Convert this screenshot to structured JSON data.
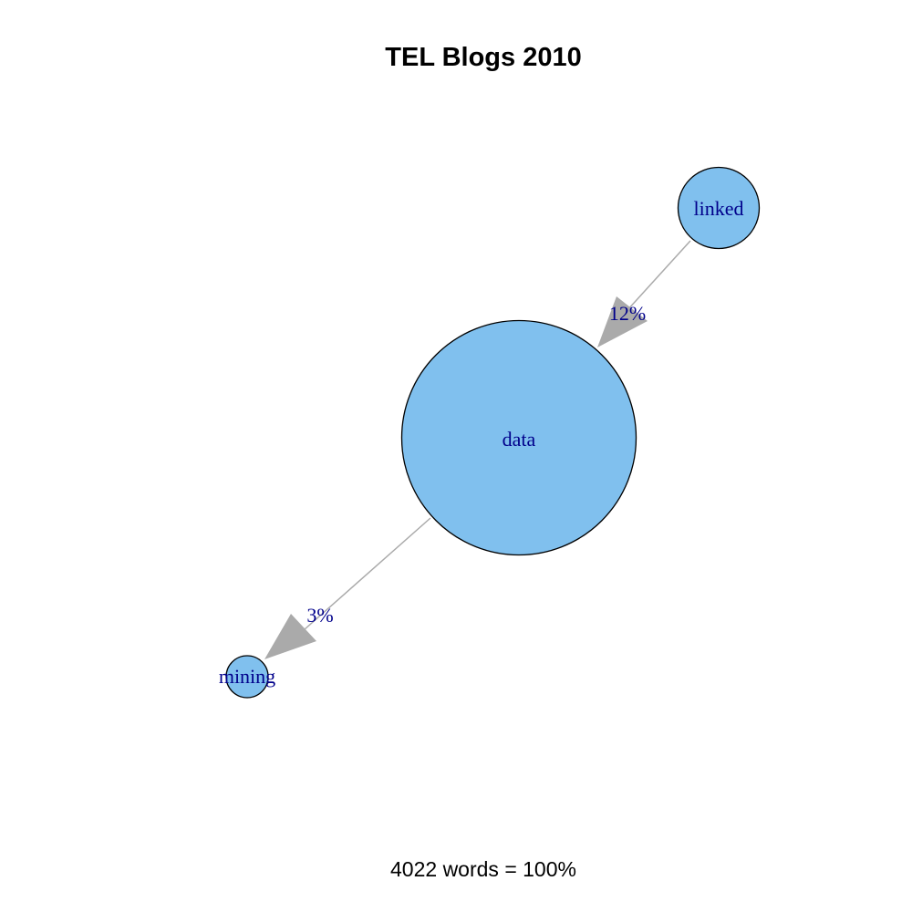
{
  "title": "TEL Blogs 2010",
  "footer": "4022 words = 100%",
  "colors": {
    "node_fill": "#80c0ee",
    "node_stroke": "#000000",
    "edge": "#aaaaaa",
    "label": "#00008b"
  },
  "nodes": [
    {
      "id": "linked",
      "label": "linked"
    },
    {
      "id": "data",
      "label": "data"
    },
    {
      "id": "mining",
      "label": "mining"
    }
  ],
  "edges": [
    {
      "from": "linked",
      "to": "data",
      "label": "12%"
    },
    {
      "from": "data",
      "to": "mining",
      "label": "3%"
    }
  ]
}
